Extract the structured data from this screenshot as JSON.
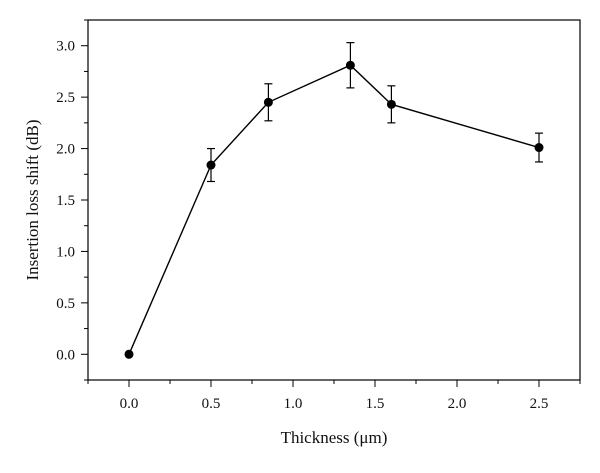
{
  "chart_data": {
    "type": "line",
    "title": "",
    "xlabel": "Thickness (μm)",
    "ylabel": "Insertion loss shift (dB)",
    "xlim": [
      -0.25,
      2.75
    ],
    "ylim": [
      -0.25,
      3.25
    ],
    "x_ticks": [
      "0.0",
      "0.5",
      "1.0",
      "1.5",
      "2.0",
      "2.5"
    ],
    "y_ticks": [
      "0.0",
      "0.5",
      "1.0",
      "1.5",
      "2.0",
      "2.5",
      "3.0"
    ],
    "grid": false,
    "legend": "none",
    "series": [
      {
        "x": [
          0.0,
          0.5,
          0.85,
          1.35,
          1.6,
          2.5
        ],
        "y": [
          0.0,
          1.84,
          2.45,
          2.81,
          2.43,
          2.01
        ],
        "error": [
          0.0,
          0.16,
          0.18,
          0.22,
          0.18,
          0.14
        ],
        "color": "#000000"
      }
    ]
  }
}
